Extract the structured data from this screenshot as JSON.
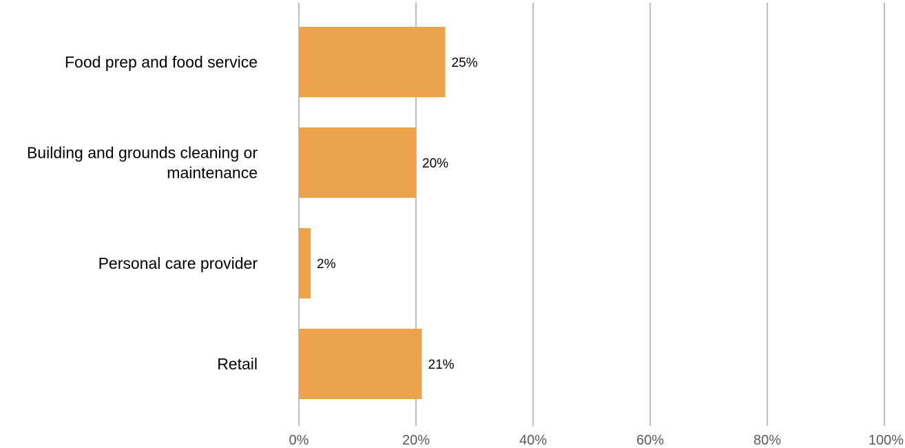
{
  "chart_data": {
    "type": "bar",
    "orientation": "horizontal",
    "categories": [
      [
        "Food prep and food service"
      ],
      [
        "Building and grounds cleaning or",
        "maintenance"
      ],
      [
        "Personal care provider"
      ],
      [
        "Retail"
      ]
    ],
    "values": [
      25,
      20,
      2,
      21
    ],
    "value_labels": [
      "25%",
      "20%",
      "2%",
      "21%"
    ],
    "xlim": [
      0,
      100
    ],
    "ticks": [
      0,
      20,
      40,
      60,
      80,
      100
    ],
    "tick_labels": [
      "0%",
      "20%",
      "40%",
      "60%",
      "80%",
      "100%"
    ],
    "title": "",
    "xlabel": "",
    "ylabel": "",
    "grid": true,
    "legend": "none",
    "colors": {
      "bar": "#eda24c",
      "grid": "#bfbfbf",
      "tick_text": "#595959",
      "label_text": "#000000"
    }
  }
}
